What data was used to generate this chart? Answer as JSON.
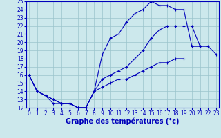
{
  "title": "Graphe des températures (°c)",
  "bg_color": "#cce8ec",
  "line_color": "#0000bb",
  "grid_color": "#9ac4cc",
  "xmin": 0,
  "xmax": 23,
  "ymin": 12,
  "ymax": 25,
  "tick_fontsize": 5.5,
  "title_fontsize": 7,
  "series": [
    {
      "x": [
        0,
        1,
        2,
        3,
        4,
        5,
        6,
        7,
        8,
        9,
        10,
        11,
        12,
        13,
        14,
        15,
        16,
        17,
        18,
        19,
        20,
        21
      ],
      "y": [
        16,
        14,
        13.5,
        12.5,
        12.5,
        12.5,
        12,
        12,
        14,
        18.5,
        20.5,
        21,
        22.5,
        23.5,
        24,
        25,
        24.5,
        24.5,
        24,
        24,
        19.5,
        19.5
      ]
    },
    {
      "x": [
        0,
        1,
        2,
        3,
        4,
        5,
        6,
        7,
        8,
        9,
        10,
        11,
        12,
        13,
        14,
        15,
        16,
        17,
        18,
        19,
        20,
        21,
        22,
        23
      ],
      "y": [
        16,
        14,
        13.5,
        13,
        12.5,
        12.5,
        12,
        12,
        14,
        15.5,
        16,
        16.5,
        17,
        18,
        19,
        20.5,
        21.5,
        22,
        22,
        22,
        22,
        19.5,
        19.5,
        18.5
      ]
    },
    {
      "x": [
        0,
        1,
        2,
        3,
        4,
        5,
        6,
        7,
        8,
        9,
        10,
        11,
        12,
        13,
        14,
        15,
        16,
        17,
        18,
        19,
        20,
        21,
        22,
        23
      ],
      "y": [
        16,
        14,
        13.5,
        13,
        12.5,
        12.5,
        12,
        12,
        14,
        14.5,
        15,
        15.5,
        15.5,
        16,
        16.5,
        17,
        17.5,
        17.5,
        18,
        18,
        null,
        null,
        null,
        null
      ]
    }
  ]
}
